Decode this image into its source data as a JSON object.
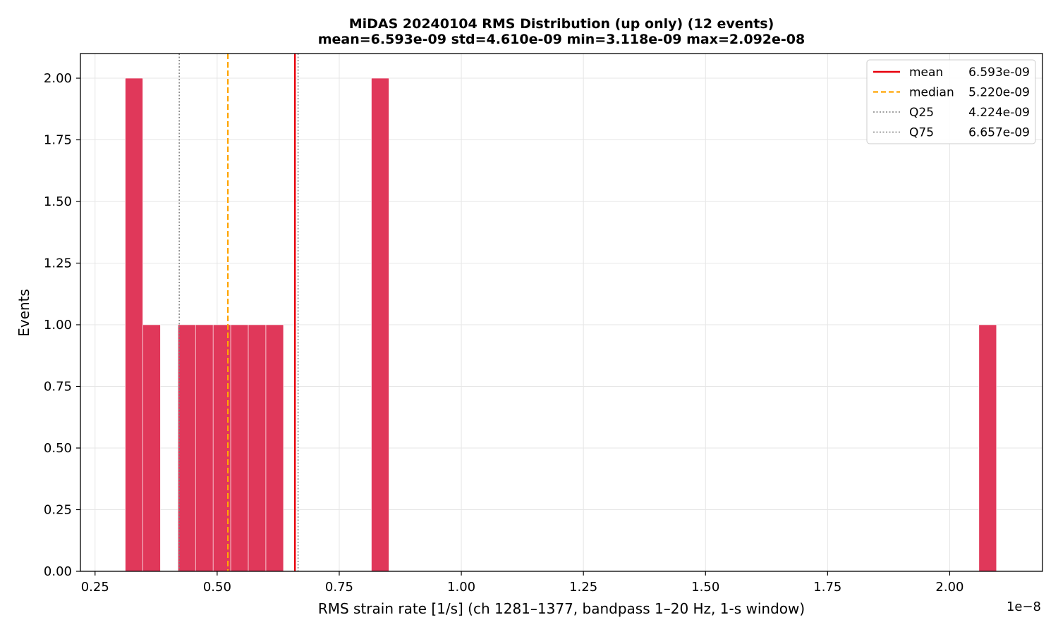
{
  "chart_data": {
    "type": "bar",
    "title": "MiDAS 20240104  RMS Distribution  (up only)  (12 events)",
    "subtitle": "mean=6.593e-09  std=4.610e-09  min=3.118e-09  max=2.092e-08",
    "xlabel": "RMS strain rate [1/s]  (ch 1281–1377, bandpass 1–20 Hz, 1-s window)",
    "ylabel": "Events",
    "x_offset_label": "1e−8",
    "xlim": [
      0.22,
      2.19
    ],
    "ylim": [
      0,
      2.1
    ],
    "grid": true,
    "legend_placement": "top-right",
    "bar_color": "#e0385a",
    "x_ticks": [
      0.25,
      0.5,
      0.75,
      1.0,
      1.25,
      1.5,
      1.75,
      2.0
    ],
    "x_tick_labels": [
      "0.25",
      "0.50",
      "0.75",
      "1.00",
      "1.25",
      "1.50",
      "1.75",
      "2.00"
    ],
    "y_ticks": [
      0,
      0.25,
      0.5,
      0.75,
      1.0,
      1.25,
      1.5,
      1.75,
      2.0
    ],
    "y_tick_labels": [
      "0.00",
      "0.25",
      "0.50",
      "0.75",
      "1.00",
      "1.25",
      "1.50",
      "1.75",
      "2.00"
    ],
    "bins": [
      {
        "x0": 0.3118,
        "x1": 0.3478,
        "count": 2
      },
      {
        "x0": 0.3478,
        "x1": 0.3838,
        "count": 1
      },
      {
        "x0": 0.4198,
        "x1": 0.4558,
        "count": 1
      },
      {
        "x0": 0.4558,
        "x1": 0.4918,
        "count": 1
      },
      {
        "x0": 0.4918,
        "x1": 0.5278,
        "count": 1
      },
      {
        "x0": 0.5278,
        "x1": 0.5638,
        "count": 1
      },
      {
        "x0": 0.5638,
        "x1": 0.5998,
        "count": 1
      },
      {
        "x0": 0.5998,
        "x1": 0.6358,
        "count": 1
      },
      {
        "x0": 0.8158,
        "x1": 0.8518,
        "count": 2
      },
      {
        "x0": 2.0598,
        "x1": 2.0958,
        "count": 1
      }
    ],
    "reference_lines": [
      {
        "name": "mean",
        "value": 0.6593,
        "label": "6.593e-09",
        "color": "#e8000b",
        "style": "solid"
      },
      {
        "name": "median",
        "value": 0.522,
        "label": "5.220e-09",
        "color": "#ffa500",
        "style": "dashed"
      },
      {
        "name": "Q25",
        "value": 0.4224,
        "label": "4.224e-09",
        "color": "#808080",
        "style": "dotted"
      },
      {
        "name": "Q75",
        "value": 0.6657,
        "label": "6.657e-09",
        "color": "#808080",
        "style": "dotted"
      }
    ]
  }
}
